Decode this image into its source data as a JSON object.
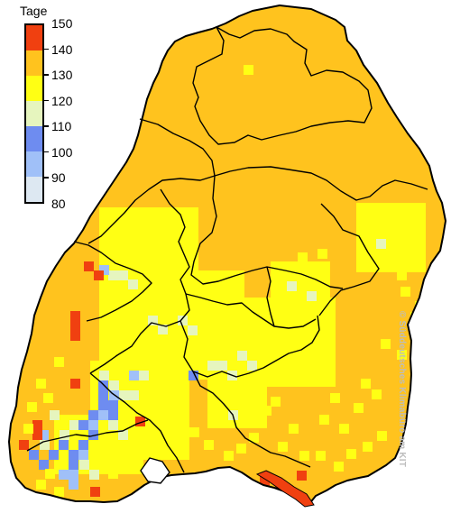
{
  "legend": {
    "title": "Tage",
    "ticks": [
      "150",
      "140",
      "130",
      "120",
      "110",
      "100",
      "90",
      "80"
    ],
    "classes": [
      {
        "range": "140-150",
        "color": "#f04010"
      },
      {
        "range": "130-140",
        "color": "#ffc31e"
      },
      {
        "range": "120-130",
        "color": "#ffff14"
      },
      {
        "range": "110-120",
        "color": "#e6f5be"
      },
      {
        "range": "100-110",
        "color": "#6e8cf0"
      },
      {
        "range": "90-100",
        "color": "#a0c0f8"
      },
      {
        "range": "80-90",
        "color": "#dde8f2"
      }
    ]
  },
  "credit": "© Süddeutsches Klimabüro am KIT"
}
